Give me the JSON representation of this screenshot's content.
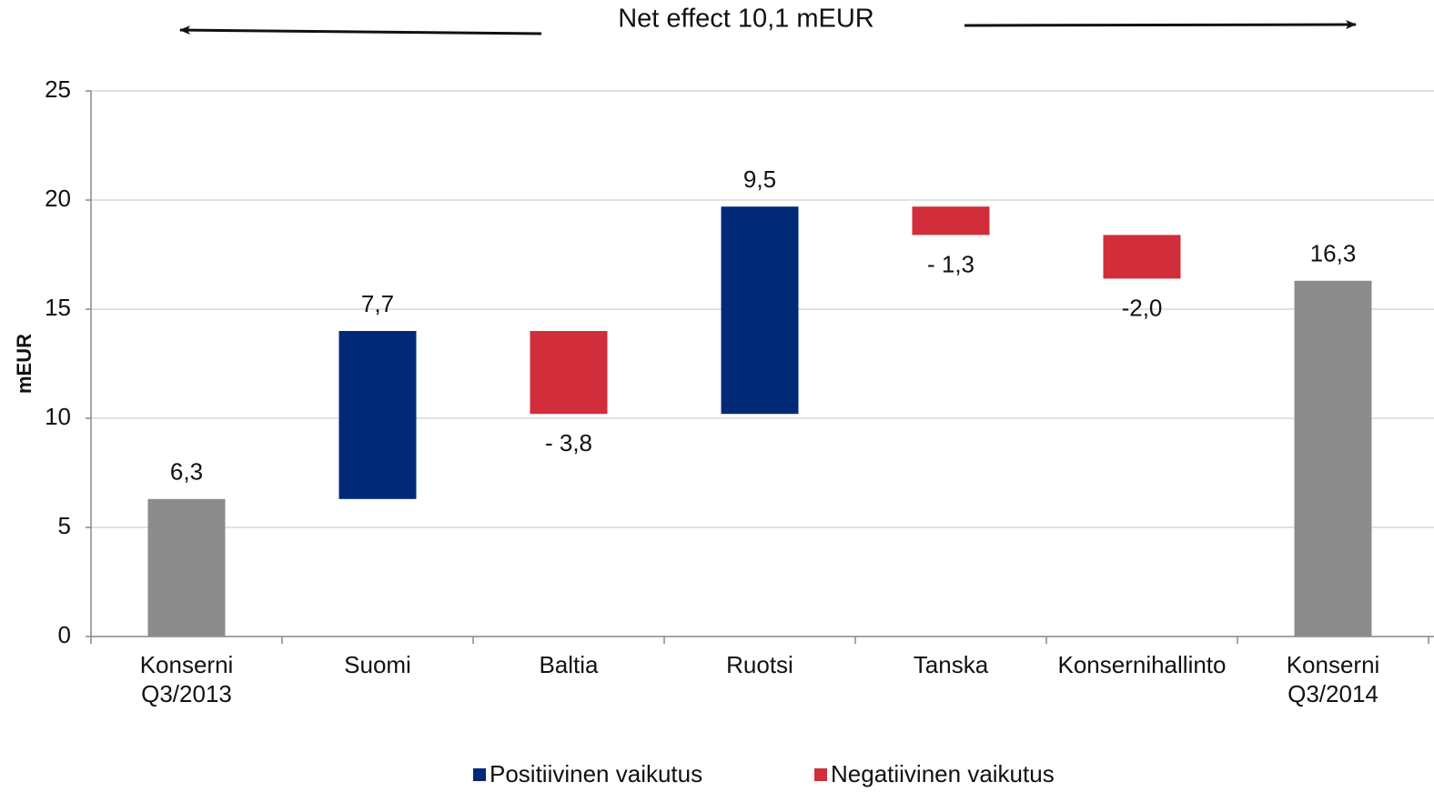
{
  "chart_data": {
    "type": "waterfall",
    "annotation": "Net effect 10,1 mEUR",
    "ylabel": "mEUR",
    "categories": [
      "Konserni Q3/2013",
      "Suomi",
      "Baltia",
      "Ruotsi",
      "Tanska",
      "Konsernihallinto",
      "Konserni Q3/2014"
    ],
    "values": [
      6.3,
      7.7,
      -3.8,
      9.5,
      -1.3,
      -2.0,
      16.3
    ],
    "value_labels": [
      "6,3",
      "7,7",
      "- 3,8",
      "9,5",
      "- 1,3",
      "-2,0",
      "16,3"
    ],
    "total_color": "#8c8c8c",
    "legend": [
      {
        "name": "Positiivinen vaikutus",
        "color": "#002a77"
      },
      {
        "name": "Negatiivinen vaikutus",
        "color": "#d12d3a"
      }
    ],
    "ylim": [
      0,
      25
    ],
    "yticks": [
      0,
      5,
      10,
      15,
      20,
      25
    ],
    "grid": true
  }
}
